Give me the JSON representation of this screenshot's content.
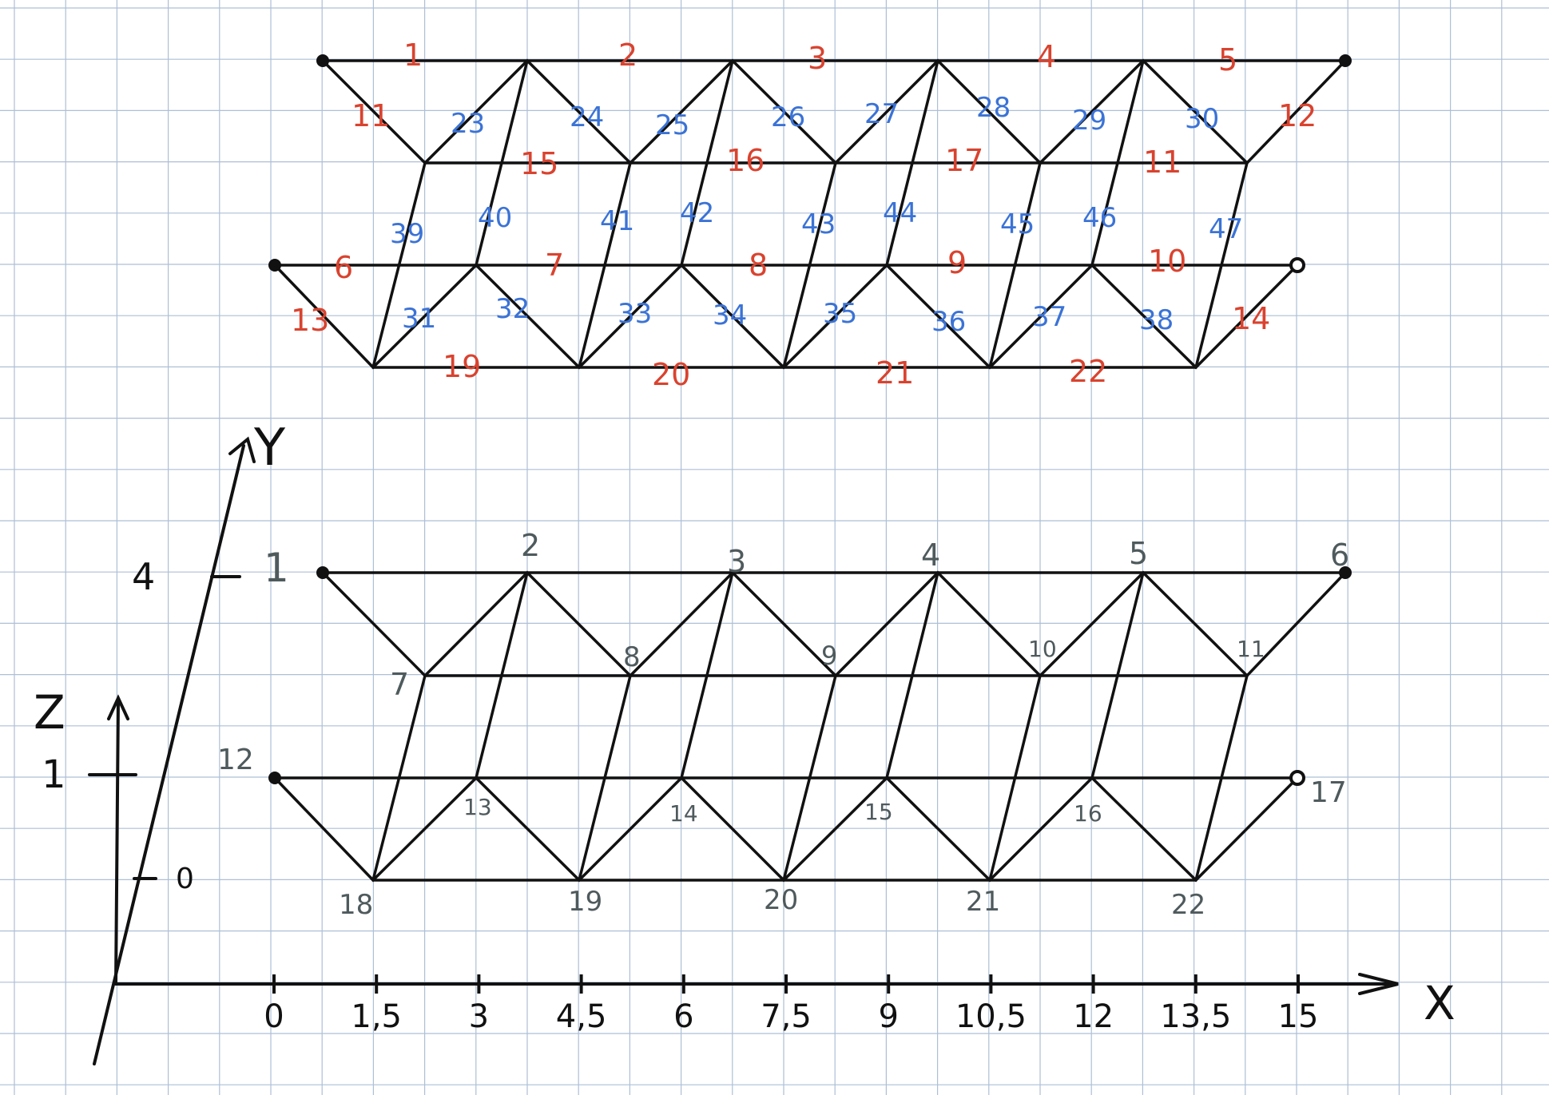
{
  "colors": {
    "grid": "#aebfd6",
    "lines": "#111111",
    "bar_labels": "#d9432f",
    "diagonal_labels": "#3b73d6",
    "node_labels": "#4f5a5d"
  },
  "top_view": {
    "red_bar_labels": [
      "1",
      "2",
      "3",
      "4",
      "5",
      "6",
      "7",
      "8",
      "9",
      "10",
      "11",
      "12",
      "13",
      "14",
      "15",
      "16",
      "17",
      "11",
      "19",
      "20",
      "21",
      "22"
    ],
    "blue_bar_labels": [
      "23",
      "24",
      "25",
      "26",
      "27",
      "28",
      "29",
      "30",
      "31",
      "32",
      "33",
      "34",
      "35",
      "36",
      "37",
      "38",
      "39",
      "40",
      "41",
      "42",
      "43",
      "44",
      "45",
      "46",
      "47"
    ]
  },
  "bottom_view": {
    "node_labels": [
      "1",
      "2",
      "3",
      "4",
      "5",
      "6",
      "7",
      "8",
      "9",
      "10",
      "11",
      "12",
      "13",
      "14",
      "15",
      "16",
      "17",
      "18",
      "19",
      "20",
      "21",
      "22"
    ]
  },
  "axes": {
    "x_label": "X",
    "y_label": "Y",
    "z_label": "Z",
    "x_ticks": [
      "0",
      "1,5",
      "3",
      "4,5",
      "6",
      "7,5",
      "9",
      "10,5",
      "12",
      "13,5",
      "15"
    ],
    "y_tick": "4",
    "z_ticks": [
      "1",
      "0"
    ]
  }
}
